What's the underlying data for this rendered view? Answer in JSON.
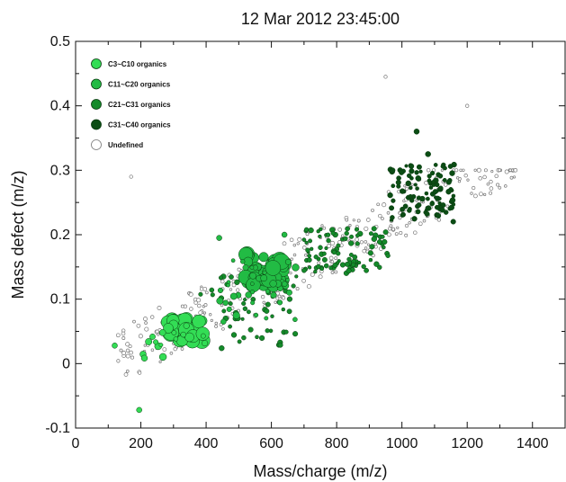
{
  "chart_data": {
    "type": "scatter",
    "title": "12 Mar 2012 23:45:00",
    "xlabel": "Mass/charge (m/z)",
    "ylabel": "Mass defect (m/z)",
    "xlim": [
      0,
      1500
    ],
    "ylim": [
      -0.1,
      0.5
    ],
    "xticks": [
      0,
      200,
      400,
      600,
      800,
      1000,
      1200,
      1400
    ],
    "yticks": [
      -0.1,
      0,
      0.1,
      0.2,
      0.3,
      0.4,
      0.5
    ],
    "grid": false,
    "legend_position": "top-left",
    "series": [
      {
        "name": "C3~C10 organics",
        "color": "#33dd55",
        "clusters": [
          {
            "x": [
              270,
              390
            ],
            "y": [
              0.035,
              0.07
            ],
            "count": 38,
            "size": [
              5,
              9
            ]
          },
          {
            "x": [
              180,
              420
            ],
            "y": [
              0.0,
              0.06
            ],
            "count": 14,
            "size": [
              2,
              4
            ]
          }
        ],
        "points": [
          [
            120,
            0.028
          ],
          [
            195,
            -0.072
          ],
          [
            330,
            0.045
          ]
        ]
      },
      {
        "name": "C11~C20 organics",
        "color": "#22bb44",
        "clusters": [
          {
            "x": [
              520,
              640
            ],
            "y": [
              0.12,
              0.17
            ],
            "count": 45,
            "size": [
              5,
              9
            ]
          },
          {
            "x": [
              440,
              680
            ],
            "y": [
              0.06,
              0.16
            ],
            "count": 40,
            "size": [
              2,
              4
            ]
          }
        ],
        "points": [
          [
            440,
            0.195
          ],
          [
            640,
            0.2
          ]
        ]
      },
      {
        "name": "C21~C31 organics",
        "color": "#148a2a",
        "clusters": [
          {
            "x": [
              700,
              960
            ],
            "y": [
              0.14,
              0.21
            ],
            "count": 95,
            "size": [
              1.8,
              3
            ]
          },
          {
            "x": [
              380,
              700
            ],
            "y": [
              0.02,
              0.16
            ],
            "count": 55,
            "size": [
              1.8,
              3
            ]
          }
        ],
        "points": [
          [
            460,
            0.07
          ]
        ]
      },
      {
        "name": "C31~C40 organics",
        "color": "#0b4d14",
        "clusters": [
          {
            "x": [
              960,
              1160
            ],
            "y": [
              0.22,
              0.31
            ],
            "count": 110,
            "size": [
              1.8,
              3
            ]
          }
        ],
        "points": [
          [
            1045,
            0.36
          ],
          [
            1080,
            0.325
          ]
        ]
      },
      {
        "name": "Undefined",
        "color": "#ffffff",
        "clusters": [
          {
            "x": [
              120,
              1350
            ],
            "y": [
              -0.07,
              0.3
            ],
            "count": 320,
            "size": [
              1.2,
              2.2
            ],
            "trend": [
              0.00026,
              -0.025
            ],
            "spread": 0.045
          }
        ],
        "points": [
          [
            950,
            0.445
          ],
          [
            1200,
            0.4
          ],
          [
            170,
            0.29
          ]
        ]
      }
    ]
  }
}
